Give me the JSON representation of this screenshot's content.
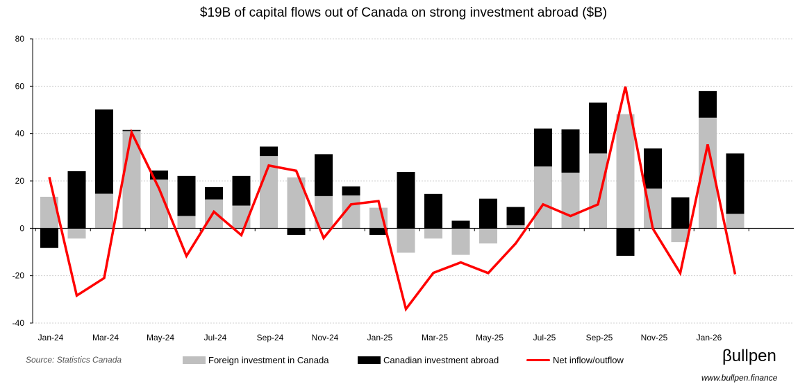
{
  "chart_data": {
    "type": "bar",
    "stacked": true,
    "title": "$19B of capital flows out of Canada on strong investment abroad ($B)",
    "categories": [
      "Jan-24",
      "Feb-24",
      "Mar-24",
      "Apr-24",
      "May-24",
      "Jun-24",
      "Jul-24",
      "Aug-24",
      "Sep-24",
      "Oct-24",
      "Nov-24",
      "Dec-24",
      "Jan-25",
      "Feb-25",
      "Mar-25",
      "Apr-25",
      "May-25",
      "Jun-25",
      "Jul-25",
      "Aug-25",
      "Sep-25",
      "Oct-25",
      "Nov-25",
      "Dec-25",
      "Jan-26",
      "Feb-26"
    ],
    "x_tick_labels": [
      "Jan-24",
      "Mar-24",
      "May-24",
      "Jul-24",
      "Sep-24",
      "Nov-24",
      "Jan-25",
      "Mar-25",
      "May-25",
      "Jul-25",
      "Sep-25",
      "Nov-25",
      "Jan-26"
    ],
    "y_ticks": [
      -40,
      -20,
      0,
      20,
      40,
      60,
      80
    ],
    "ylim": [
      -40,
      80
    ],
    "grid": "horizontal dotted",
    "legend_position": "bottom",
    "series": [
      {
        "name": "Foreign investment in Canada",
        "type": "bar",
        "color": "#bfbfbf",
        "values": [
          13.3,
          -4.3,
          14.6,
          41.0,
          20.6,
          5.2,
          12.2,
          9.6,
          30.5,
          21.5,
          13.6,
          13.9,
          8.7,
          -10.3,
          -4.3,
          -11.2,
          -6.4,
          1.3,
          26.1,
          23.5,
          31.6,
          48.2,
          16.8,
          -5.8,
          46.7,
          6.1
        ]
      },
      {
        "name": "Canadian investment abroad",
        "type": "bar",
        "color": "#000000",
        "values": [
          -8.3,
          24.1,
          35.6,
          0.5,
          3.8,
          16.9,
          5.2,
          12.5,
          4.0,
          -2.8,
          17.7,
          3.8,
          -2.8,
          23.8,
          14.5,
          3.2,
          12.5,
          7.7,
          16.0,
          18.3,
          21.5,
          -11.6,
          16.9,
          13.1,
          11.3,
          25.5
        ]
      },
      {
        "name": "Net inflow/outflow",
        "type": "line",
        "color": "#ff0000",
        "values": [
          21.6,
          -28.4,
          -21.0,
          40.5,
          16.8,
          -11.7,
          7.0,
          -2.9,
          26.5,
          24.3,
          -4.1,
          10.1,
          11.5,
          -34.1,
          -18.8,
          -14.4,
          -18.9,
          -6.4,
          10.1,
          5.2,
          10.1,
          59.8,
          -0.1,
          -18.9,
          35.4,
          -19.4
        ]
      }
    ]
  },
  "footer": {
    "source": "Source: Statistics Canada",
    "logo": "βullpen",
    "url": "www.bullpen.finance"
  }
}
